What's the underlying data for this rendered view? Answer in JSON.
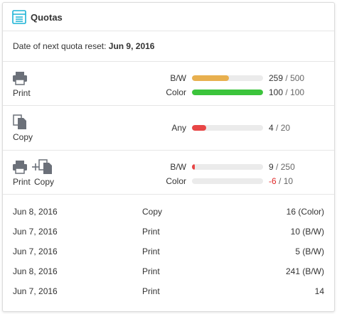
{
  "header": {
    "title": "Quotas"
  },
  "reset": {
    "label": "Date of next quota reset:",
    "date": "Jun 9, 2016"
  },
  "separator": "/",
  "groups": [
    {
      "labels": [
        "Print"
      ],
      "quotas": [
        {
          "name": "B/W",
          "used": 259,
          "total": 500,
          "color": "#e8b04f"
        },
        {
          "name": "Color",
          "used": 100,
          "total": 100,
          "color": "#3cc43c"
        }
      ]
    },
    {
      "labels": [
        "Copy"
      ],
      "quotas": [
        {
          "name": "Any",
          "used": 4,
          "total": 20,
          "color": "#e84646"
        }
      ]
    },
    {
      "labels": [
        "Print",
        "Copy"
      ],
      "quotas": [
        {
          "name": "B/W",
          "used": 9,
          "total": 250,
          "color": "#e84646"
        },
        {
          "name": "Color",
          "used": -6,
          "total": 10,
          "color": "#e84646",
          "used_color": "#e02a2a"
        }
      ]
    }
  ],
  "history": [
    [
      "Jun 8, 2016",
      "Copy",
      "16 (Color)"
    ],
    [
      "Jun 7, 2016",
      "Print",
      "10 (B/W)"
    ],
    [
      "Jun 7, 2016",
      "Print",
      "5 (B/W)"
    ],
    [
      "Jun 8, 2016",
      "Print",
      "241 (B/W)"
    ],
    [
      "Jun 7, 2016",
      "Print",
      "14"
    ]
  ]
}
